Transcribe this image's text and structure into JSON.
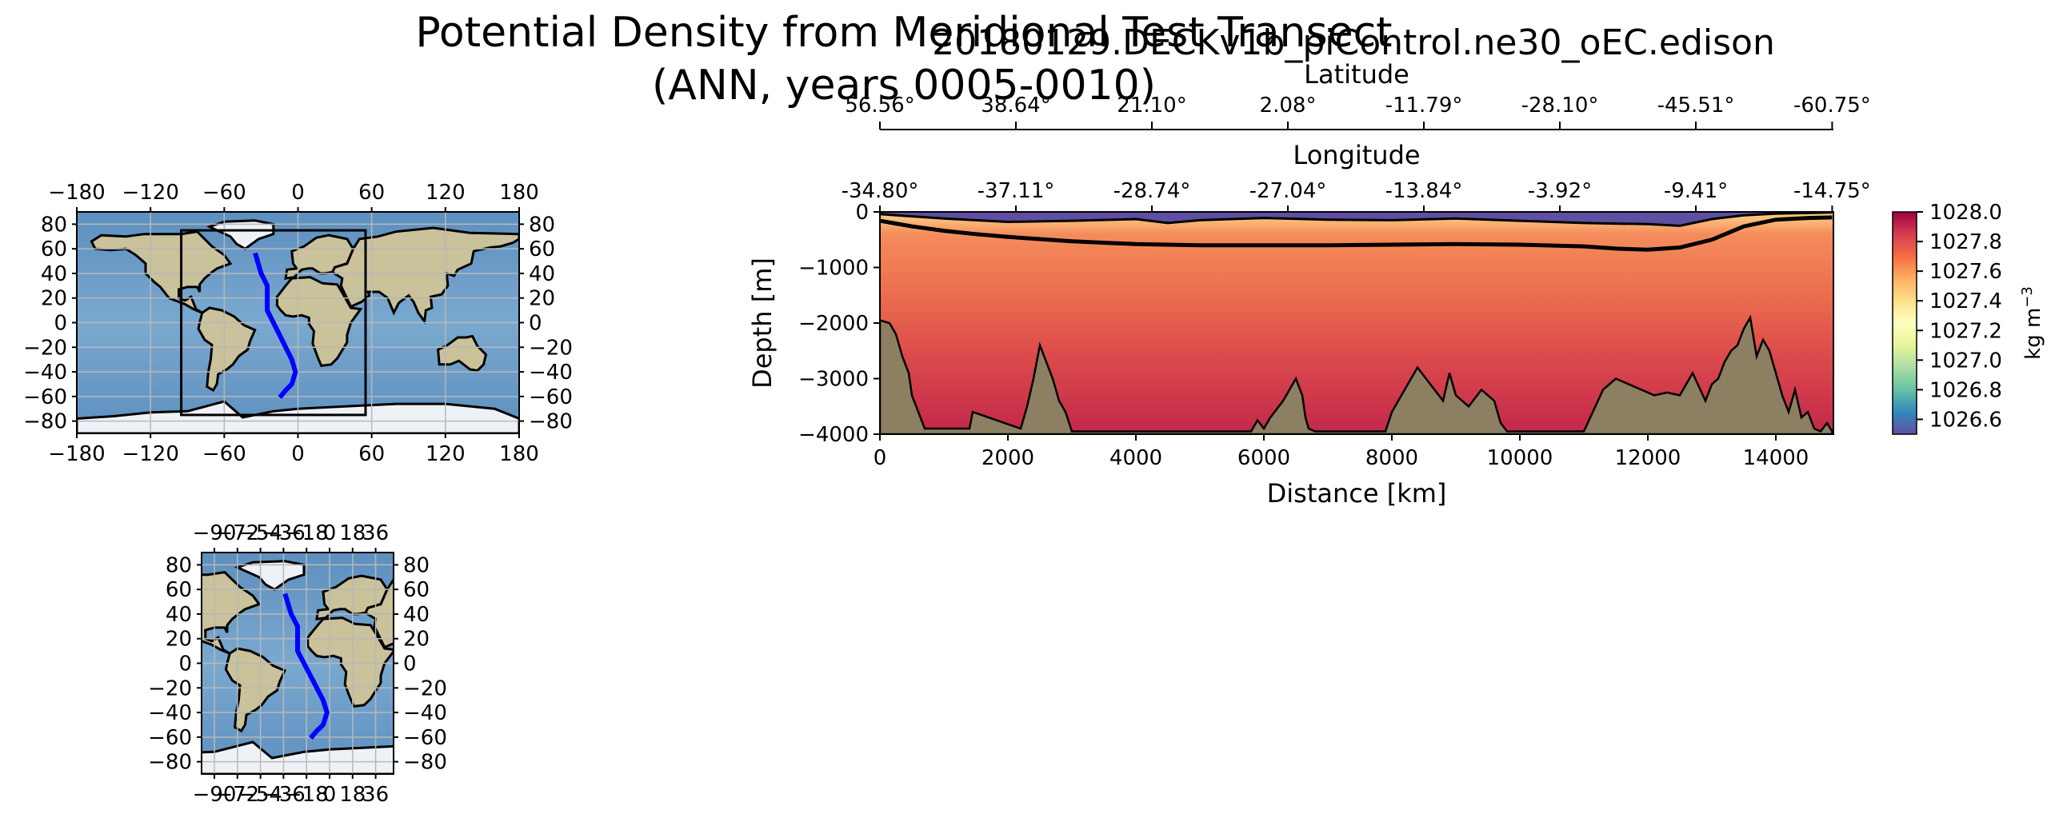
{
  "figure": {
    "title_line1": "Potential Density from Meridional Test Transect",
    "title_line2": "(ANN, years 0005-0010)",
    "run_title": "20180129.DECKv1b_piControl.ne30_oEC.edison"
  },
  "colors": {
    "transect_line": "#0000ff",
    "bathymetry_fill": "#8d7f62",
    "ocean": "#6fa0c8",
    "land": "#c9c29a",
    "ice": "#eef2f6"
  },
  "chart_data": [
    {
      "type": "heatmap",
      "title": "",
      "xlabel": "Distance [km]",
      "ylabel": "Depth [m]",
      "xlim": [
        0,
        14900
      ],
      "ylim": [
        -4000,
        0
      ],
      "xticks": [
        0,
        2000,
        4000,
        6000,
        8000,
        10000,
        12000,
        14000
      ],
      "yticks": [
        0,
        -1000,
        -2000,
        -3000,
        -4000
      ],
      "colorscale": "Spectral_r",
      "colorbar": {
        "label": "kg m^-3",
        "vmin": 1026.5,
        "vmax": 1028.0,
        "ticks": [
          1028.0,
          1027.8,
          1027.6,
          1027.4,
          1027.2,
          1027.0,
          1026.8,
          1026.6
        ]
      },
      "secondary_axes": [
        {
          "label": "Longitude",
          "tick_positions_km": [
            0,
            2125,
            4250,
            6375,
            8500,
            10625,
            12750,
            14880
          ],
          "tick_labels": [
            "-34.80°",
            "-37.11°",
            "-28.74°",
            "-27.04°",
            "-13.84°",
            "-3.92°",
            "-9.41°",
            "-14.75°"
          ]
        },
        {
          "label": "Latitude",
          "tick_positions_km": [
            0,
            2125,
            4250,
            6375,
            8500,
            10625,
            12750,
            14880
          ],
          "tick_labels": [
            "56.56°",
            "38.64°",
            "21.10°",
            "2.08°",
            "-11.79°",
            "-28.10°",
            "-45.51°",
            "-60.75°"
          ]
        }
      ],
      "contour_lines": [
        {
          "name": "upper isopycnal",
          "x": [
            0,
            1000,
            2000,
            3000,
            4000,
            4500,
            5000,
            6000,
            7000,
            8000,
            9000,
            10000,
            11000,
            12000,
            12500,
            13000,
            13500,
            14000,
            14500,
            14880
          ],
          "y": [
            -40,
            -120,
            -180,
            -160,
            -130,
            -200,
            -150,
            -110,
            -140,
            -150,
            -120,
            -160,
            -200,
            -220,
            -250,
            -130,
            -60,
            -30,
            -20,
            -10
          ]
        },
        {
          "name": "lower isopycnal",
          "x": [
            0,
            500,
            1000,
            1500,
            2000,
            3000,
            4000,
            5000,
            6000,
            7000,
            8000,
            9000,
            10000,
            11000,
            11500,
            12000,
            12500,
            13000,
            13500,
            14000,
            14500,
            14880
          ],
          "y": [
            -160,
            -260,
            -340,
            -400,
            -450,
            -530,
            -580,
            -600,
            -600,
            -600,
            -590,
            -580,
            -590,
            -620,
            -660,
            -680,
            -640,
            -500,
            -260,
            -140,
            -110,
            -100
          ]
        }
      ],
      "bathymetry": {
        "x": [
          0,
          150,
          250,
          350,
          450,
          500,
          600,
          700,
          1400,
          1450,
          2200,
          2300,
          2400,
          2500,
          2600,
          2700,
          2800,
          2900,
          3000,
          5800,
          5900,
          6000,
          6100,
          6300,
          6500,
          6600,
          6650,
          6700,
          6800,
          7900,
          8000,
          8200,
          8400,
          8600,
          8800,
          8900,
          9000,
          9200,
          9400,
          9600,
          9700,
          9800,
          11000,
          11100,
          11300,
          11500,
          11700,
          11900,
          12100,
          12300,
          12500,
          12700,
          12900,
          13000,
          13100,
          13200,
          13300,
          13400,
          13500,
          13600,
          13700,
          13800,
          13900,
          14000,
          14100,
          14200,
          14300,
          14400,
          14500,
          14600,
          14700,
          14800,
          14880
        ],
        "y": [
          -1950,
          -2000,
          -2200,
          -2600,
          -2900,
          -3300,
          -3600,
          -3900,
          -3900,
          -3600,
          -3900,
          -3500,
          -3000,
          -2400,
          -2700,
          -3000,
          -3400,
          -3600,
          -3950,
          -3950,
          -3750,
          -3900,
          -3700,
          -3400,
          -3000,
          -3300,
          -3700,
          -3900,
          -3950,
          -3950,
          -3600,
          -3200,
          -2800,
          -3100,
          -3400,
          -2900,
          -3300,
          -3500,
          -3200,
          -3400,
          -3800,
          -3950,
          -3950,
          -3700,
          -3200,
          -3000,
          -3100,
          -3200,
          -3300,
          -3250,
          -3300,
          -2900,
          -3400,
          -3100,
          -3000,
          -2700,
          -2500,
          -2400,
          -2100,
          -1900,
          -2600,
          -2300,
          -2500,
          -2900,
          -3300,
          -3600,
          -3200,
          -3700,
          -3600,
          -3900,
          -3950,
          -3800,
          -3950
        ]
      }
    },
    {
      "type": "map",
      "title": "",
      "xlim": [
        -180,
        180
      ],
      "ylim": [
        -90,
        90
      ],
      "xticks": [
        -180,
        -120,
        -60,
        0,
        60,
        120,
        180
      ],
      "yticks": [
        80,
        60,
        40,
        20,
        0,
        -20,
        -40,
        -60,
        -80
      ],
      "zoom_box": {
        "lon": [
          -95,
          55
        ],
        "lat": [
          -75,
          75
        ]
      },
      "transect": {
        "lon": [
          -34.8,
          -30,
          -25,
          -25,
          -20,
          -15,
          -10,
          -5,
          -2,
          -5,
          -10,
          -14.75
        ],
        "lat": [
          56.56,
          40,
          30,
          10,
          0,
          -10,
          -20,
          -30,
          -40,
          -50,
          -55,
          -60.75
        ]
      }
    },
    {
      "type": "map",
      "title": "",
      "xlim": [
        -100,
        50
      ],
      "ylim": [
        -90,
        90
      ],
      "xticks": [
        -90,
        -72,
        -54,
        -36,
        -18,
        0,
        18,
        36
      ],
      "xtick_labels": [
        "−90",
        "−72",
        "−54",
        "−36",
        "−18",
        "0",
        "18",
        "36"
      ],
      "yticks": [
        80,
        60,
        40,
        20,
        0,
        -20,
        -40,
        -60,
        -80
      ],
      "transect": {
        "lon": [
          -34.8,
          -30,
          -25,
          -25,
          -20,
          -15,
          -10,
          -5,
          -2,
          -5,
          -10,
          -14.75
        ],
        "lat": [
          56.56,
          40,
          30,
          10,
          0,
          -10,
          -20,
          -30,
          -40,
          -50,
          -55,
          -60.75
        ]
      }
    }
  ]
}
